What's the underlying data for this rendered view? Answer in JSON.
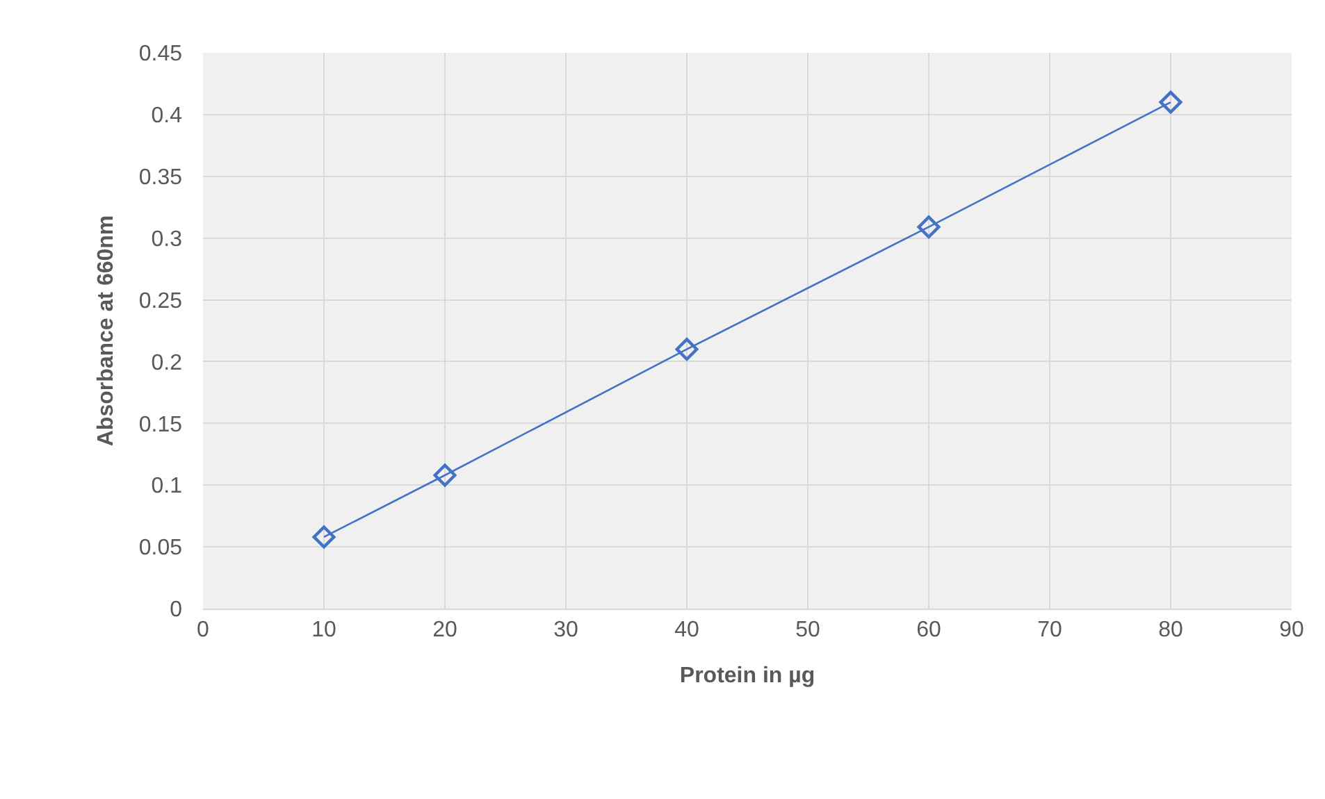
{
  "chart_data": {
    "type": "line",
    "xlabel": "Protein in µg",
    "ylabel": "Absorbance at 660nm",
    "x": [
      10,
      20,
      40,
      60,
      80
    ],
    "series": [
      {
        "color": "#4472c4",
        "values": [
          0.058,
          0.108,
          0.21,
          0.309,
          0.41
        ]
      }
    ],
    "xlim": [
      0,
      90
    ],
    "xticks": [
      0,
      10,
      20,
      30,
      40,
      50,
      60,
      70,
      80,
      90
    ],
    "ylim": [
      0,
      0.45
    ],
    "yticks": [
      0,
      {
        "value": 0.05,
        "label": "0.05"
      },
      {
        "value": 0.1,
        "label": "0.1"
      },
      {
        "value": 0.15,
        "label": "0.15"
      },
      {
        "value": 0.2,
        "label": "0.2"
      },
      {
        "value": 0.25,
        "label": "0.25"
      },
      {
        "value": 0.3,
        "label": "0.3"
      },
      {
        "value": 0.35,
        "label": "0.35"
      },
      {
        "value": 0.4,
        "label": "0.4"
      },
      {
        "value": 0.45,
        "label": "0.45"
      }
    ],
    "grid": true,
    "legend": false,
    "marker": "diamond",
    "line_style": "solid"
  }
}
